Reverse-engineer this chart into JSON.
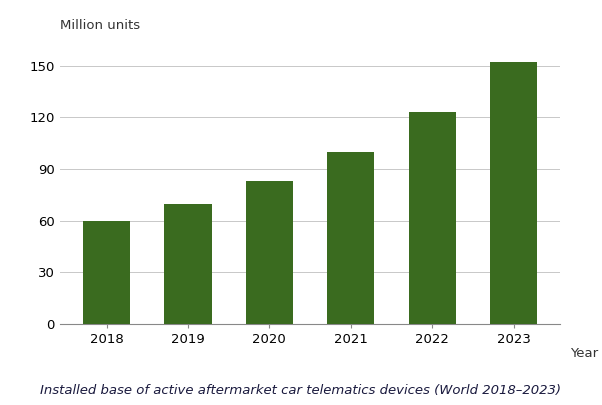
{
  "categories": [
    "2018",
    "2019",
    "2020",
    "2021",
    "2022",
    "2023"
  ],
  "values": [
    60,
    70,
    83,
    100,
    123,
    152
  ],
  "bar_color": "#3a6b1f",
  "bar_edge_color": "#3a6b1f",
  "background_color": "#ffffff",
  "ylabel": "Million units",
  "xlabel": "Year",
  "ylim": [
    0,
    160
  ],
  "yticks": [
    0,
    30,
    60,
    90,
    120,
    150
  ],
  "grid_color": "#c8c8c8",
  "caption": "Installed base of active aftermarket car telematics devices (World 2018–2023)",
  "caption_fontsize": 9.5,
  "ylabel_fontsize": 9.5,
  "xlabel_fontsize": 9.5,
  "tick_fontsize": 9.5,
  "bar_width": 0.58
}
